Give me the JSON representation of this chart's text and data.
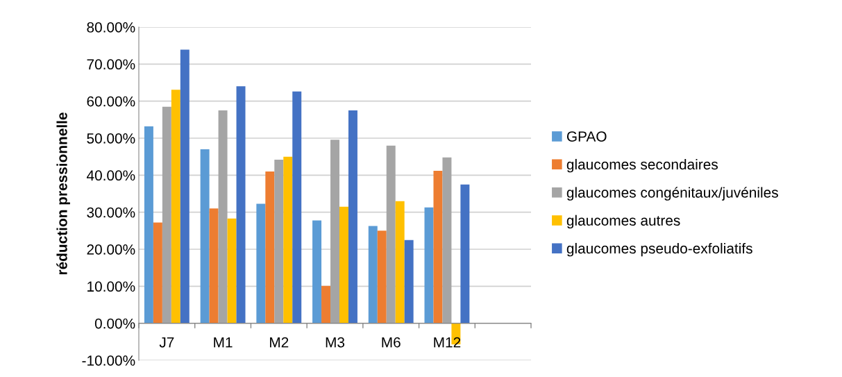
{
  "chart_data": {
    "type": "bar",
    "ylabel": "réduction pressionnelle",
    "categories": [
      "J7",
      "M1",
      "M2",
      "M3",
      "M6",
      "M12",
      null
    ],
    "series": [
      {
        "name": "GPAO",
        "color": "#5b9bd5",
        "values": [
          53.2,
          47.0,
          32.3,
          27.8,
          26.3,
          31.3,
          null
        ]
      },
      {
        "name": "glaucomes secondaires",
        "color": "#ed7d31",
        "values": [
          27.2,
          31.0,
          41.0,
          10.1,
          25.0,
          41.2,
          null
        ]
      },
      {
        "name": "glaucomes congénitaux/juvéniles",
        "color": "#a5a5a5",
        "values": [
          58.5,
          57.5,
          44.2,
          49.6,
          48.0,
          44.8,
          null
        ]
      },
      {
        "name": "glaucomes autres",
        "color": "#ffc000",
        "values": [
          63.1,
          28.3,
          45.0,
          31.5,
          33.0,
          -5.7,
          null
        ]
      },
      {
        "name": "glaucomes pseudo-exfoliatifs",
        "color": "#4472c4",
        "values": [
          73.9,
          64.0,
          62.6,
          57.5,
          22.5,
          37.5,
          null
        ]
      }
    ],
    "ylim": [
      -10,
      80
    ],
    "yticks": [
      {
        "value": -10,
        "label": "-10.00%"
      },
      {
        "value": 0,
        "label": "0.00%"
      },
      {
        "value": 10,
        "label": "10.00%"
      },
      {
        "value": 20,
        "label": "20.00%"
      },
      {
        "value": 30,
        "label": "30.00%"
      },
      {
        "value": 40,
        "label": "40.00%"
      },
      {
        "value": 50,
        "label": "50.00%"
      },
      {
        "value": 60,
        "label": "60.00%"
      },
      {
        "value": 70,
        "label": "70.00%"
      },
      {
        "value": 80,
        "label": "80.00%"
      }
    ],
    "grid": "y",
    "legend": "right"
  }
}
